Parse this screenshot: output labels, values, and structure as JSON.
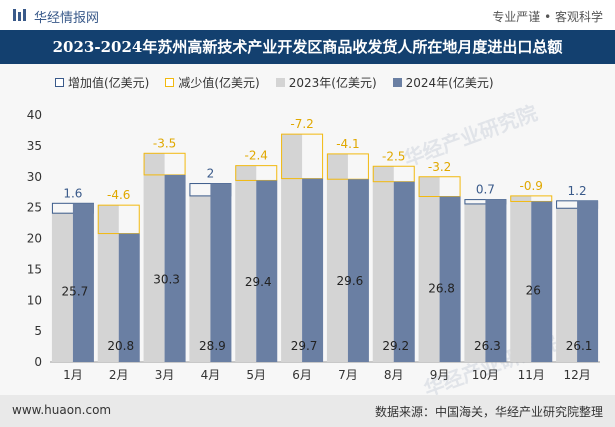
{
  "header": {
    "brand": "华经情报网",
    "tagline": "专业严谨 • 客观科学",
    "title": "2023-2024年苏州高新技术产业开发区商品收发货人所在地月度进出口总额"
  },
  "legend": {
    "increase": "增加值(亿美元)",
    "decrease": "减少值(亿美元)",
    "y2023": "2023年(亿美元)",
    "y2024": "2024年(亿美元)"
  },
  "footer": {
    "url": "www.huaon.com",
    "source": "数据来源：中国海关，华经产业研究院整理"
  },
  "watermark": {
    "text1": "华经产业研究院",
    "text2": "华经产业研究院"
  },
  "colors": {
    "bar2023": "#d4d4d4",
    "bar2024": "#6a7fa3",
    "increase": "#3a5a8a",
    "decrease": "#f2b90f"
  },
  "chart_data": {
    "type": "bar",
    "categories": [
      "1月",
      "2月",
      "3月",
      "4月",
      "5月",
      "6月",
      "7月",
      "8月",
      "9月",
      "10月",
      "11月",
      "12月"
    ],
    "series": [
      {
        "name": "2023年(亿美元)",
        "values": [
          24.1,
          25.4,
          33.8,
          26.9,
          31.8,
          36.9,
          33.7,
          31.7,
          30.0,
          25.6,
          26.9,
          24.9
        ]
      },
      {
        "name": "2024年(亿美元)",
        "values": [
          25.7,
          20.8,
          30.3,
          28.9,
          29.4,
          29.7,
          29.6,
          29.2,
          26.8,
          26.3,
          26.0,
          26.1
        ]
      }
    ],
    "change_labels": [
      "1.6",
      "-4.6",
      "-3.5",
      "2",
      "-2.4",
      "-7.2",
      "-4.1",
      "-2.5",
      "-3.2",
      "0.7",
      "-0.9",
      "1.2"
    ],
    "value_labels": [
      "25.7",
      "20.8",
      "30.3",
      "28.9",
      "29.4",
      "29.7",
      "29.6",
      "29.2",
      "26.8",
      "26.3",
      "26",
      "26.1"
    ],
    "ylim": [
      0,
      40
    ],
    "yticks": [
      "0",
      "5",
      "10",
      "15",
      "20",
      "25",
      "30",
      "35",
      "40"
    ]
  }
}
